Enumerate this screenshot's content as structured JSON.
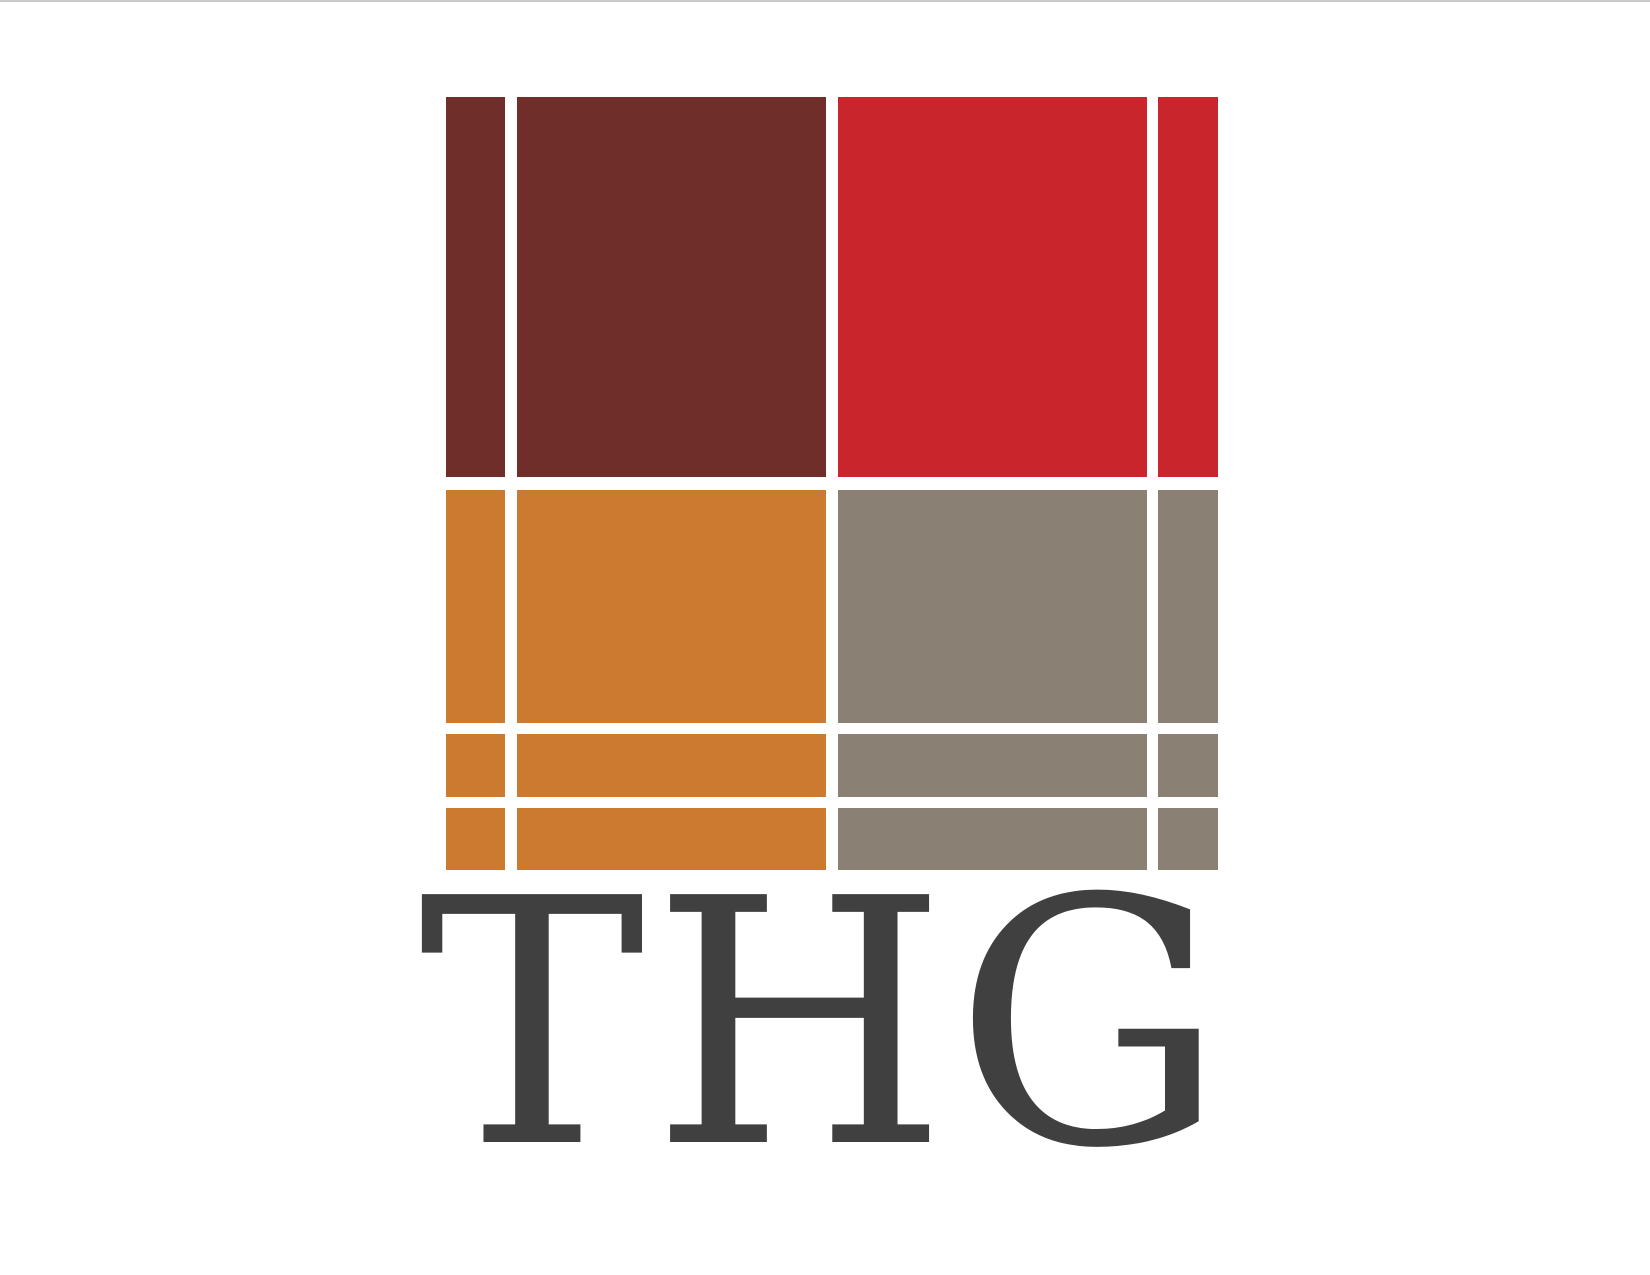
{
  "logo": {
    "wordmark": "THG",
    "colors": {
      "top_left": "#6f2e2a",
      "top_right": "#c8262c",
      "bottom_left": "#cc7a2f",
      "bottom_right": "#8a8174",
      "wordmark": "#404040",
      "divider": "#ffffff"
    }
  }
}
